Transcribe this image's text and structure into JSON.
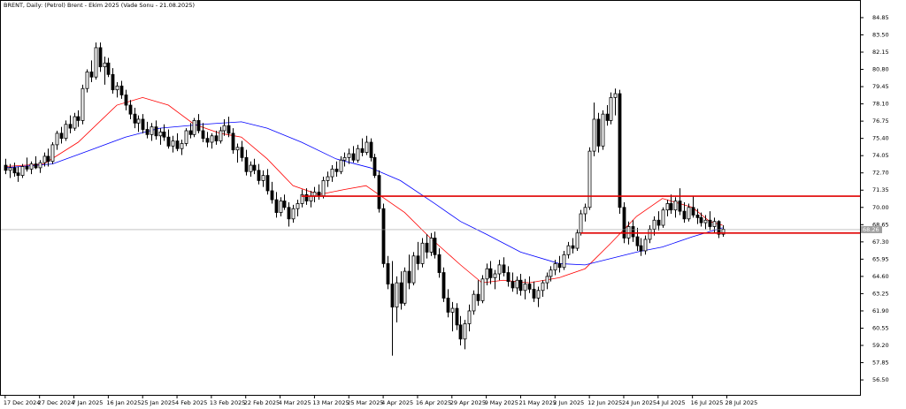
{
  "chart_data": {
    "type": "candlestick",
    "title": "BRENT, Daily:  (Petrol) Brent - Ekim 2025 (Vade Sonu - 21.08.2025)",
    "up_color": "#ffffff",
    "down_color": "#000000",
    "grid": false,
    "ylim": [
      55.33,
      86.16
    ],
    "yticks": [
      84.85,
      {
        "value": 83.5,
        "label": "83.50"
      },
      82.15,
      {
        "value": 80.8,
        "label": "80.80"
      },
      79.45,
      {
        "value": 78.1,
        "label": "78.10"
      },
      76.75,
      {
        "value": 75.4,
        "label": "75.40"
      },
      74.05,
      {
        "value": 72.7,
        "label": "72.70"
      },
      71.35,
      {
        "value": 70,
        "label": "70.00"
      },
      68.65,
      {
        "value": 67.3,
        "label": "67.30"
      },
      65.95,
      {
        "value": 64.6,
        "label": "64.60"
      },
      63.25,
      {
        "value": 61.9,
        "label": "61.90"
      },
      60.55,
      {
        "value": 59.2,
        "label": "59.20"
      },
      57.85,
      {
        "value": 56.5,
        "label": "56.50"
      }
    ],
    "xlim": [
      -1,
      199
    ],
    "xticks": [
      {
        "value": 0,
        "label": "17 Dec 2024"
      },
      {
        "value": 8,
        "label": "27 Dec 2024"
      },
      {
        "value": 16,
        "label": "7 Jan 2025"
      },
      {
        "value": 24,
        "label": "16 Jan 2025"
      },
      {
        "value": 32,
        "label": "25 Jan 2025"
      },
      {
        "value": 40,
        "label": "4 Feb 2025"
      },
      {
        "value": 48,
        "label": "13 Feb 2025"
      },
      {
        "value": 56,
        "label": "22 Feb 2025"
      },
      {
        "value": 64,
        "label": "4 Mar 2025"
      },
      {
        "value": 72,
        "label": "13 Mar 2025"
      },
      {
        "value": 80,
        "label": "25 Mar 2025"
      },
      {
        "value": 88,
        "label": "4 Apr 2025"
      },
      {
        "value": 96,
        "label": "16 Apr 2025"
      },
      {
        "value": 104,
        "label": "29 Apr 2025"
      },
      {
        "value": 112,
        "label": "9 May 2025"
      },
      {
        "value": 120,
        "label": "21 May 2025"
      },
      {
        "value": 128,
        "label": "2 Jun 2025"
      },
      {
        "value": 136,
        "label": "12 Jun 2025"
      },
      {
        "value": 144,
        "label": "24 Jun 2025"
      },
      {
        "value": 152,
        "label": "4 Jul 2025"
      },
      {
        "value": 160,
        "label": "16 Jul 2025"
      },
      {
        "value": 168,
        "label": "28 Jul 2025"
      }
    ],
    "last_price": 68.26,
    "last_price_color": "#a0a0a0",
    "levels": [
      {
        "value": 70.88,
        "from": 69,
        "color": "#e00000"
      },
      {
        "value": 67.99,
        "from": 134,
        "color": "#e00000"
      }
    ],
    "lines": [
      {
        "color": "#ff0000",
        "x": [
          0,
          9,
          17,
          26,
          32,
          38,
          44,
          50,
          55,
          61,
          67,
          73,
          79,
          84,
          87,
          93,
          99,
          106,
          111,
          116,
          122,
          129,
          135,
          141,
          147,
          153,
          160,
          164,
          167
        ],
        "values": [
          73.2,
          73.4,
          75.1,
          78.0,
          78.6,
          78.0,
          76.5,
          75.8,
          75.5,
          73.8,
          71.7,
          71.0,
          71.4,
          71.7,
          71.0,
          69.6,
          67.6,
          65.5,
          64.1,
          64.3,
          64.1,
          64.5,
          65.2,
          67.2,
          69.3,
          70.7,
          70.0,
          68.9,
          68.6
        ]
      },
      {
        "color": "#0000ff",
        "x": [
          0,
          11,
          20,
          28,
          36,
          46,
          55,
          61,
          69,
          77,
          85,
          92,
          100,
          106,
          112,
          120,
          129,
          135,
          141,
          147,
          153,
          160,
          167
        ],
        "values": [
          73.1,
          73.4,
          74.5,
          75.5,
          76.2,
          76.5,
          76.7,
          76.2,
          75.1,
          73.8,
          73.1,
          72.1,
          70.3,
          68.9,
          67.9,
          66.5,
          65.6,
          65.5,
          66.0,
          66.5,
          66.9,
          67.7,
          68.4
        ]
      }
    ],
    "candles": [
      [
        73.3,
        73.8,
        72.6,
        72.9
      ],
      [
        72.9,
        73.4,
        72.3,
        73.1
      ],
      [
        73.1,
        73.5,
        72.4,
        72.7
      ],
      [
        72.7,
        73.2,
        72.0,
        72.5
      ],
      [
        72.5,
        73.4,
        72.3,
        73.2
      ],
      [
        73.2,
        73.9,
        72.8,
        73.0
      ],
      [
        73.0,
        73.6,
        72.6,
        73.4
      ],
      [
        73.4,
        74.0,
        73.0,
        73.1
      ],
      [
        73.1,
        73.7,
        72.7,
        73.5
      ],
      [
        73.5,
        74.3,
        73.2,
        74.0
      ],
      [
        74.0,
        74.6,
        73.2,
        73.6
      ],
      [
        73.6,
        75.1,
        73.4,
        74.9
      ],
      [
        74.9,
        76.0,
        74.5,
        75.8
      ],
      [
        75.8,
        76.3,
        75.0,
        75.4
      ],
      [
        75.4,
        76.8,
        75.2,
        76.5
      ],
      [
        76.5,
        77.2,
        75.8,
        76.2
      ],
      [
        76.2,
        77.4,
        76.0,
        77.1
      ],
      [
        77.1,
        77.6,
        76.3,
        76.8
      ],
      [
        76.8,
        79.6,
        76.5,
        79.3
      ],
      [
        79.3,
        80.8,
        79.0,
        80.6
      ],
      [
        80.6,
        81.5,
        79.8,
        80.2
      ],
      [
        80.2,
        82.9,
        80.0,
        82.5
      ],
      [
        82.5,
        82.9,
        80.6,
        81.0
      ],
      [
        81.0,
        81.8,
        79.6,
        81.3
      ],
      [
        81.3,
        81.7,
        80.2,
        80.4
      ],
      [
        80.4,
        80.9,
        78.9,
        79.2
      ],
      [
        79.2,
        79.8,
        78.6,
        79.5
      ],
      [
        79.5,
        79.9,
        78.5,
        78.8
      ],
      [
        78.8,
        79.2,
        77.6,
        78.0
      ],
      [
        78.0,
        78.4,
        76.9,
        77.3
      ],
      [
        77.3,
        77.8,
        76.2,
        76.6
      ],
      [
        76.6,
        77.2,
        75.9,
        76.9
      ],
      [
        76.9,
        77.3,
        75.8,
        76.1
      ],
      [
        76.1,
        76.7,
        75.4,
        75.7
      ],
      [
        75.7,
        76.6,
        75.2,
        76.3
      ],
      [
        76.3,
        76.8,
        75.3,
        75.6
      ],
      [
        75.6,
        76.2,
        74.9,
        75.9
      ],
      [
        75.9,
        76.5,
        75.2,
        75.5
      ],
      [
        75.5,
        76.1,
        74.6,
        74.8
      ],
      [
        74.8,
        75.6,
        74.3,
        75.2
      ],
      [
        75.2,
        75.8,
        74.4,
        74.6
      ],
      [
        74.6,
        75.3,
        74.1,
        75.0
      ],
      [
        75.0,
        76.2,
        74.8,
        76.0
      ],
      [
        76.0,
        76.6,
        75.4,
        75.7
      ],
      [
        75.7,
        77.0,
        75.5,
        76.8
      ],
      [
        76.8,
        77.3,
        75.8,
        76.0
      ],
      [
        76.0,
        76.6,
        75.1,
        75.4
      ],
      [
        75.4,
        75.9,
        74.7,
        75.1
      ],
      [
        75.1,
        75.8,
        74.6,
        75.6
      ],
      [
        75.6,
        76.0,
        74.9,
        75.2
      ],
      [
        75.2,
        76.3,
        75.0,
        76.0
      ],
      [
        76.0,
        76.9,
        75.6,
        76.4
      ],
      [
        76.4,
        77.1,
        75.5,
        75.8
      ],
      [
        75.8,
        76.2,
        74.2,
        74.5
      ],
      [
        74.5,
        75.0,
        73.5,
        74.7
      ],
      [
        74.7,
        75.2,
        73.6,
        73.9
      ],
      [
        73.9,
        74.5,
        72.5,
        72.8
      ],
      [
        72.8,
        73.6,
        72.4,
        73.3
      ],
      [
        73.3,
        73.8,
        72.6,
        72.9
      ],
      [
        72.9,
        73.4,
        71.8,
        72.1
      ],
      [
        72.1,
        72.9,
        71.6,
        72.5
      ],
      [
        72.5,
        73.0,
        71.0,
        71.3
      ],
      [
        71.3,
        72.0,
        70.3,
        70.6
      ],
      [
        70.6,
        71.2,
        69.2,
        69.6
      ],
      [
        69.6,
        70.8,
        69.3,
        70.5
      ],
      [
        70.5,
        71.0,
        69.8,
        70.0
      ],
      [
        70.0,
        70.4,
        68.5,
        69.1
      ],
      [
        69.1,
        70.2,
        68.8,
        69.9
      ],
      [
        69.9,
        70.6,
        69.3,
        70.3
      ],
      [
        70.3,
        71.4,
        70.0,
        71.0
      ],
      [
        71.0,
        71.5,
        70.2,
        70.5
      ],
      [
        70.5,
        71.3,
        70.0,
        70.9
      ],
      [
        70.9,
        71.6,
        70.4,
        71.2
      ],
      [
        71.2,
        71.8,
        70.6,
        70.9
      ],
      [
        70.9,
        72.4,
        70.7,
        72.1
      ],
      [
        72.1,
        72.8,
        71.6,
        72.4
      ],
      [
        72.4,
        73.3,
        72.0,
        73.0
      ],
      [
        73.0,
        73.6,
        72.4,
        72.8
      ],
      [
        72.8,
        74.0,
        72.6,
        73.7
      ],
      [
        73.7,
        74.3,
        73.2,
        73.9
      ],
      [
        73.9,
        74.6,
        73.4,
        74.2
      ],
      [
        74.2,
        74.8,
        73.5,
        73.7
      ],
      [
        73.7,
        74.9,
        73.5,
        74.6
      ],
      [
        74.6,
        75.4,
        74.0,
        74.3
      ],
      [
        74.3,
        75.6,
        74.1,
        75.1
      ],
      [
        75.1,
        75.4,
        73.6,
        73.9
      ],
      [
        73.9,
        74.2,
        72.3,
        72.5
      ],
      [
        72.5,
        72.9,
        69.6,
        69.9
      ],
      [
        69.9,
        70.3,
        65.3,
        65.6
      ],
      [
        65.6,
        66.2,
        63.6,
        64.0
      ],
      [
        64.0,
        65.8,
        58.4,
        62.2
      ],
      [
        62.2,
        64.6,
        61.0,
        64.1
      ],
      [
        64.1,
        65.0,
        62.0,
        62.5
      ],
      [
        62.5,
        65.3,
        62.3,
        65.0
      ],
      [
        65.0,
        66.3,
        63.6,
        64.1
      ],
      [
        64.1,
        66.5,
        63.9,
        66.2
      ],
      [
        66.2,
        67.3,
        65.1,
        65.6
      ],
      [
        65.6,
        67.6,
        65.3,
        67.2
      ],
      [
        67.2,
        67.9,
        66.0,
        66.5
      ],
      [
        66.5,
        68.0,
        66.2,
        67.6
      ],
      [
        67.6,
        68.1,
        66.0,
        66.3
      ],
      [
        66.3,
        66.8,
        64.5,
        64.9
      ],
      [
        64.9,
        65.3,
        62.6,
        62.9
      ],
      [
        62.9,
        63.6,
        61.4,
        61.8
      ],
      [
        61.8,
        62.6,
        60.3,
        62.1
      ],
      [
        62.1,
        62.5,
        60.4,
        60.8
      ],
      [
        60.8,
        61.5,
        59.2,
        59.7
      ],
      [
        59.7,
        61.2,
        58.9,
        60.9
      ],
      [
        60.9,
        62.4,
        60.3,
        61.9
      ],
      [
        61.9,
        63.5,
        61.6,
        63.2
      ],
      [
        63.2,
        64.3,
        62.3,
        62.7
      ],
      [
        62.7,
        64.7,
        62.5,
        64.4
      ],
      [
        64.4,
        65.6,
        63.9,
        65.2
      ],
      [
        65.2,
        65.8,
        64.0,
        64.5
      ],
      [
        64.5,
        65.1,
        63.6,
        64.8
      ],
      [
        64.8,
        65.9,
        64.3,
        65.5
      ],
      [
        65.5,
        66.1,
        64.6,
        64.9
      ],
      [
        64.9,
        65.4,
        63.8,
        64.2
      ],
      [
        64.2,
        64.9,
        63.4,
        63.7
      ],
      [
        63.7,
        64.6,
        63.2,
        64.3
      ],
      [
        64.3,
        64.8,
        63.1,
        63.5
      ],
      [
        63.5,
        64.4,
        62.8,
        64.0
      ],
      [
        64.0,
        64.6,
        63.3,
        63.6
      ],
      [
        63.6,
        64.2,
        62.6,
        62.9
      ],
      [
        62.9,
        63.8,
        62.2,
        63.5
      ],
      [
        63.5,
        64.3,
        63.0,
        64.1
      ],
      [
        64.1,
        64.9,
        63.6,
        64.6
      ],
      [
        64.6,
        65.4,
        64.2,
        65.1
      ],
      [
        65.1,
        65.9,
        64.7,
        65.6
      ],
      [
        65.6,
        66.2,
        64.9,
        65.3
      ],
      [
        65.3,
        66.6,
        65.1,
        66.3
      ],
      [
        66.3,
        67.3,
        66.0,
        67.0
      ],
      [
        67.0,
        67.6,
        66.4,
        66.8
      ],
      [
        66.8,
        68.3,
        66.6,
        68.0
      ],
      [
        68.0,
        69.8,
        67.8,
        69.5
      ],
      [
        69.5,
        70.3,
        68.9,
        70.0
      ],
      [
        70.0,
        74.7,
        69.8,
        74.4
      ],
      [
        74.4,
        78.2,
        74.0,
        76.9
      ],
      [
        76.9,
        77.4,
        74.3,
        74.8
      ],
      [
        74.8,
        77.6,
        74.5,
        77.3
      ],
      [
        77.3,
        78.0,
        76.4,
        76.8
      ],
      [
        76.8,
        79.0,
        76.5,
        78.6
      ],
      [
        78.6,
        79.3,
        77.2,
        78.9
      ],
      [
        78.9,
        79.2,
        69.5,
        70.0
      ],
      [
        70.0,
        70.4,
        67.2,
        67.6
      ],
      [
        67.6,
        68.9,
        67.1,
        68.5
      ],
      [
        68.5,
        69.0,
        67.3,
        67.7
      ],
      [
        67.7,
        68.4,
        66.6,
        67.0
      ],
      [
        67.0,
        67.6,
        66.2,
        66.6
      ],
      [
        66.6,
        67.8,
        66.3,
        67.5
      ],
      [
        67.5,
        68.6,
        67.2,
        68.3
      ],
      [
        68.3,
        69.3,
        67.8,
        69.0
      ],
      [
        69.0,
        69.7,
        68.2,
        68.6
      ],
      [
        68.6,
        70.0,
        68.4,
        69.8
      ],
      [
        69.8,
        70.6,
        69.3,
        70.3
      ],
      [
        70.3,
        71.0,
        69.5,
        69.8
      ],
      [
        69.8,
        70.8,
        69.2,
        70.5
      ],
      [
        70.5,
        71.5,
        69.4,
        69.7
      ],
      [
        69.7,
        70.4,
        68.8,
        69.1
      ],
      [
        69.1,
        70.3,
        68.9,
        70.0
      ],
      [
        70.0,
        70.9,
        69.2,
        69.4
      ],
      [
        69.4,
        69.9,
        68.7,
        69.2
      ],
      [
        69.2,
        69.6,
        68.5,
        68.8
      ],
      [
        68.8,
        69.4,
        68.3,
        69.0
      ],
      [
        69.0,
        69.7,
        68.2,
        68.5
      ],
      [
        68.5,
        69.2,
        68.0,
        68.9
      ],
      [
        68.9,
        69.0,
        67.6,
        67.9
      ],
      [
        67.9,
        68.6,
        67.7,
        68.3
      ]
    ]
  }
}
